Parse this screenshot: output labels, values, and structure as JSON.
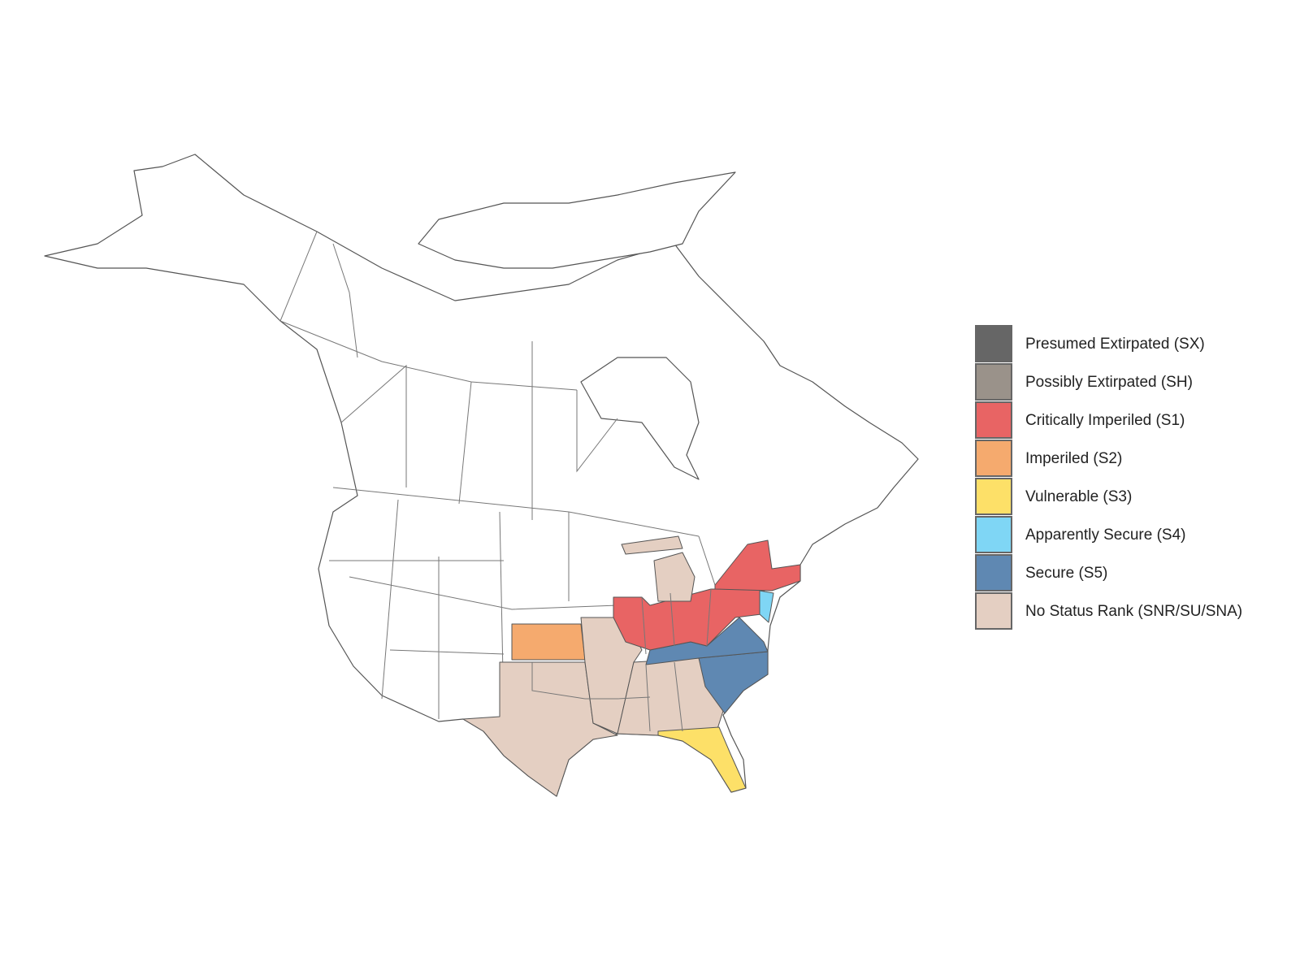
{
  "legend": {
    "items": [
      {
        "label": "Presumed Extirpated (SX)",
        "color": "#666666"
      },
      {
        "label": "Possibly Extirpated (SH)",
        "color": "#9a928a"
      },
      {
        "label": "Critically Imperiled (S1)",
        "color": "#e86464"
      },
      {
        "label": "Imperiled (S2)",
        "color": "#f5aa6e"
      },
      {
        "label": "Vulnerable (S3)",
        "color": "#fde068"
      },
      {
        "label": "Apparently Secure (S4)",
        "color": "#7fd6f5"
      },
      {
        "label": "Secure (S5)",
        "color": "#5f88b2"
      },
      {
        "label": "No Status Rank (SNR/SU/SNA)",
        "color": "#e4cfc2"
      }
    ]
  }
}
